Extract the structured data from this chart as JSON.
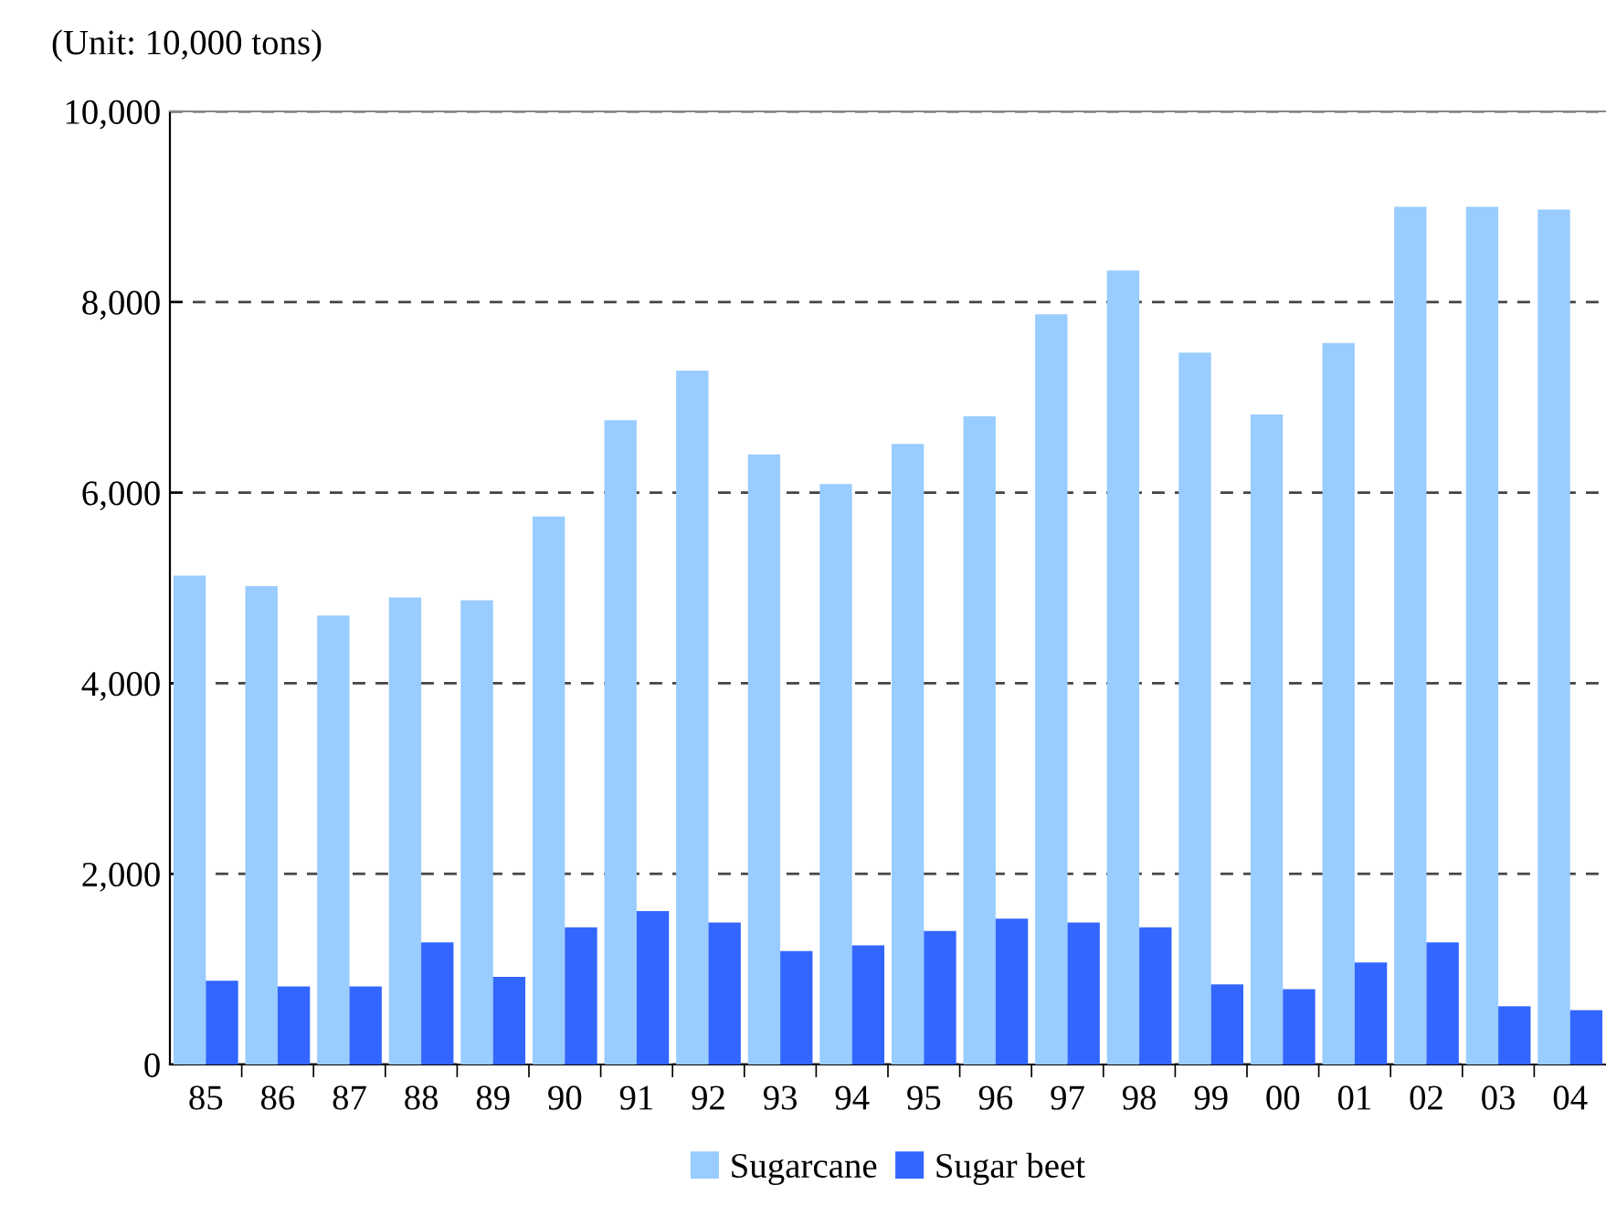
{
  "chart_data": {
    "type": "bar",
    "categories": [
      "85",
      "86",
      "87",
      "88",
      "89",
      "90",
      "91",
      "92",
      "93",
      "94",
      "95",
      "96",
      "97",
      "98",
      "99",
      "00",
      "01",
      "02",
      "03",
      "04"
    ],
    "series": [
      {
        "name": "Sugarcane",
        "color": "#99ccff",
        "values": [
          5130,
          5020,
          4710,
          4900,
          4870,
          5750,
          6760,
          7280,
          6400,
          6090,
          6510,
          6800,
          7870,
          8330,
          7470,
          6820,
          7570,
          9000,
          9000,
          8970
        ]
      },
      {
        "name": "Sugar beet",
        "color": "#3366ff",
        "values": [
          880,
          820,
          820,
          1280,
          920,
          1440,
          1610,
          1490,
          1190,
          1250,
          1400,
          1530,
          1490,
          1440,
          840,
          790,
          1070,
          1280,
          610,
          570
        ]
      }
    ],
    "ylim": [
      0,
      10000
    ],
    "yticks": [
      {
        "value": 0,
        "label": "0"
      },
      {
        "value": 2000,
        "label": "2,000"
      },
      {
        "value": 4000,
        "label": "4,000"
      },
      {
        "value": 6000,
        "label": "6,000"
      },
      {
        "value": 8000,
        "label": "8,000"
      },
      {
        "value": 10000,
        "label": "10,000"
      }
    ],
    "grid": "y",
    "line_style": "dashed",
    "legend": "bottom",
    "annotations": [
      "(Unit: 10,000 tons)"
    ]
  }
}
